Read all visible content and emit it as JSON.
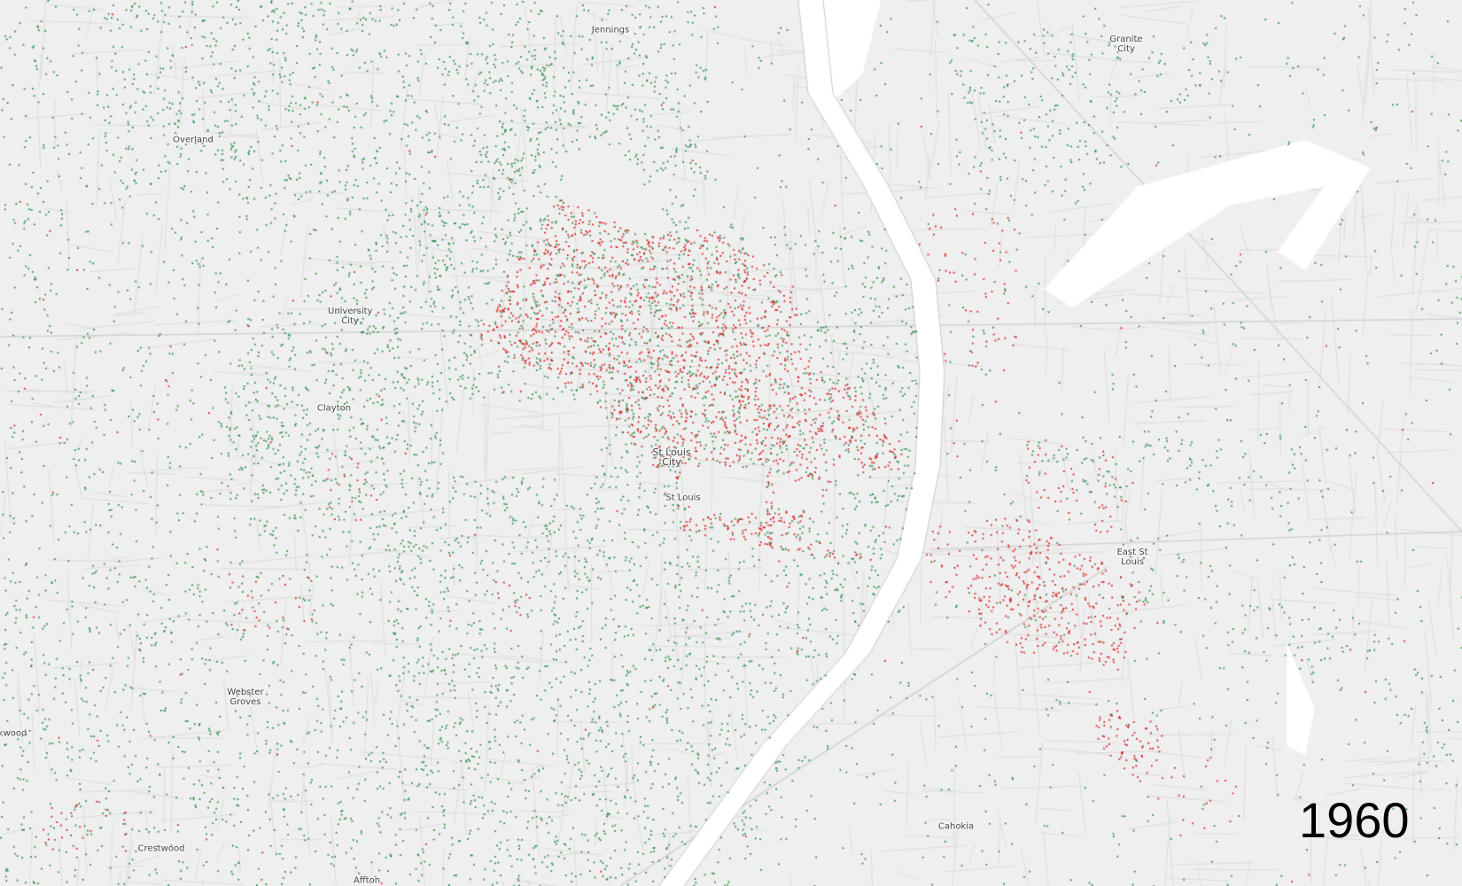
{
  "map": {
    "year": "1960",
    "colors": {
      "background": "#efefef",
      "river": "#ffffff",
      "roads": "#dcdcdc",
      "green_dots": "#2e8b4a",
      "red_dots": "#d81e1e"
    },
    "places": [
      {
        "name": "Jennings"
      },
      {
        "name": "Overland"
      },
      {
        "name": "University City"
      },
      {
        "name": "Clayton"
      },
      {
        "name": "St Louis City"
      },
      {
        "name": "St Louis"
      },
      {
        "name": "Webster Groves"
      },
      {
        "name": "rkwood"
      },
      {
        "name": "Crestwood"
      },
      {
        "name": "Affton"
      },
      {
        "name": "Granite City"
      },
      {
        "name": "East St Louis"
      },
      {
        "name": "Cahokia"
      }
    ]
  }
}
